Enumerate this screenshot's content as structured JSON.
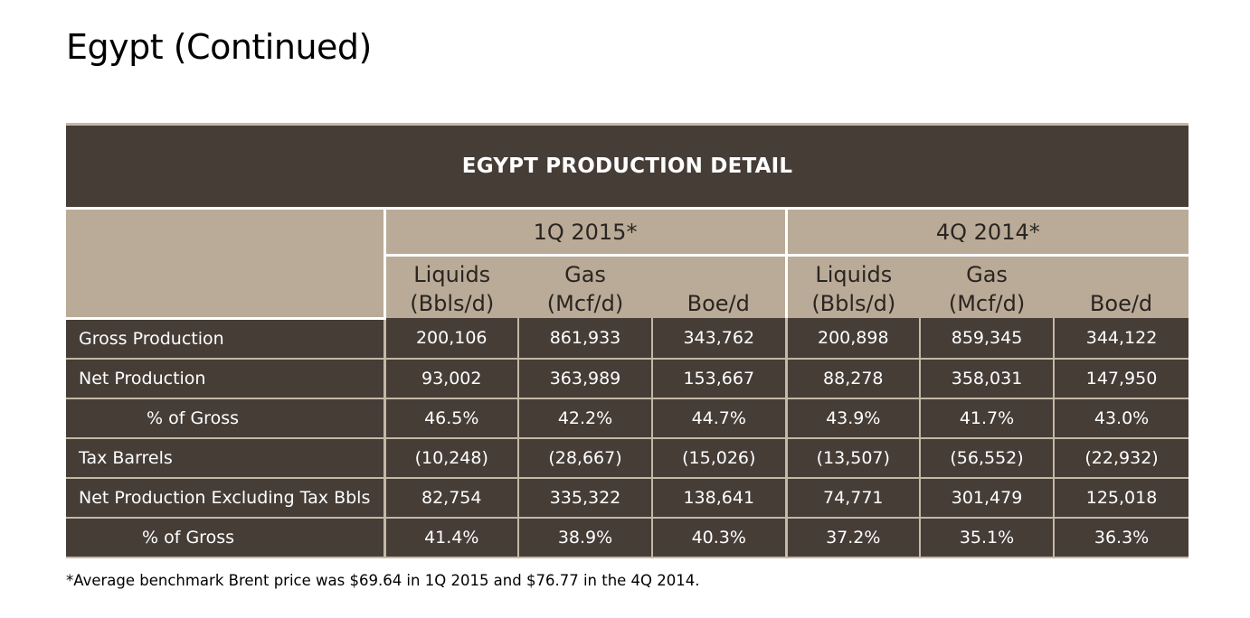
{
  "page": {
    "title": "Egypt (Continued)"
  },
  "table": {
    "title": "EGYPT PRODUCTION DETAIL",
    "periods": [
      "1Q 2015*",
      "4Q 2014*"
    ],
    "columns": [
      {
        "line1": "Liquids",
        "line2": "(Bbls/d)"
      },
      {
        "line1": "Gas",
        "line2": "(Mcf/d)"
      },
      {
        "line1": "",
        "line2": "Boe/d"
      },
      {
        "line1": "Liquids",
        "line2": "(Bbls/d)"
      },
      {
        "line1": "Gas",
        "line2": "(Mcf/d)"
      },
      {
        "line1": "",
        "line2": "Boe/d"
      }
    ],
    "rows": [
      {
        "label": "Gross Production",
        "indent": 0,
        "values": [
          "200,106",
          "861,933",
          "343,762",
          "200,898",
          "859,345",
          "344,122"
        ]
      },
      {
        "label": "Net Production",
        "indent": 0,
        "values": [
          "93,002",
          "363,989",
          "153,667",
          "88,278",
          "358,031",
          "147,950"
        ]
      },
      {
        "label": "% of Gross",
        "indent": 1,
        "values": [
          "46.5%",
          "42.2%",
          "44.7%",
          "43.9%",
          "41.7%",
          "43.0%"
        ]
      },
      {
        "label": "Tax Barrels",
        "indent": 0,
        "values": [
          "(10,248)",
          "(28,667)",
          "(15,026)",
          "(13,507)",
          "(56,552)",
          "(22,932)"
        ]
      },
      {
        "label": "Net Production Excluding Tax Bbls",
        "indent": 0,
        "values": [
          "82,754",
          "335,322",
          "138,641",
          "74,771",
          "301,479",
          "125,018"
        ]
      },
      {
        "label": "% of Gross",
        "indent": 2,
        "values": [
          "41.4%",
          "38.9%",
          "40.3%",
          "37.2%",
          "35.1%",
          "36.3%"
        ]
      }
    ]
  },
  "footnote": "*Average benchmark Brent price was $69.64 in 1Q 2015 and $76.77 in the 4Q 2014.",
  "colors": {
    "dark_band": "#463d37",
    "header_tan": "#b9ab98",
    "rule_tan": "#c4b8a6"
  }
}
